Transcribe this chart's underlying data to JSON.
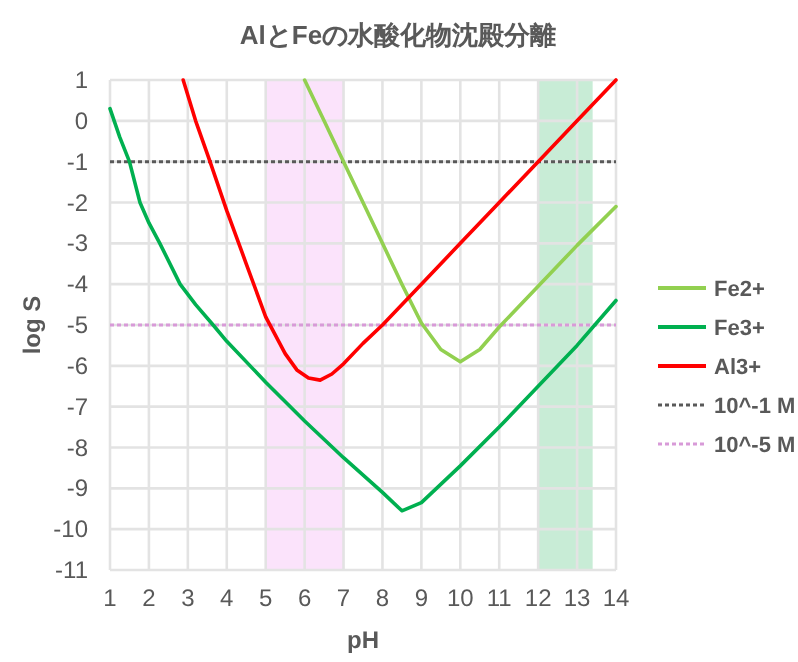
{
  "chart_data": {
    "type": "line",
    "title": "AlとFeの水酸化物沈殿分離",
    "xlabel": "pH",
    "ylabel": "log S",
    "xlim": [
      1,
      14
    ],
    "xticks": [
      1,
      2,
      3,
      4,
      5,
      6,
      7,
      8,
      9,
      10,
      11,
      12,
      13,
      14
    ],
    "ylim": [
      -11,
      1
    ],
    "yticks": [
      -11,
      -10,
      -9,
      -8,
      -7,
      -6,
      -5,
      -4,
      -3,
      -2,
      -1,
      0,
      1
    ],
    "grid": true,
    "legend": "right",
    "marker": "none",
    "series": [
      {
        "name": "Fe2+",
        "color": "#92d050",
        "x": [
          6,
          6.5,
          7,
          7.5,
          8,
          8.5,
          9,
          9.5,
          10,
          10.5,
          11,
          12,
          13,
          14
        ],
        "values": [
          1,
          0,
          -1,
          -2,
          -3,
          -4,
          -4.95,
          -5.6,
          -5.9,
          -5.6,
          -5.05,
          -4.05,
          -3.05,
          -2.1
        ]
      },
      {
        "name": "Fe3+",
        "color": "#00b050",
        "x": [
          1,
          1.25,
          1.5,
          1.77,
          2,
          2.28,
          2.8,
          3.2,
          3.65,
          4,
          5,
          6,
          7,
          8,
          8.5,
          9,
          10,
          11,
          12,
          13,
          14
        ],
        "values": [
          0.3,
          -0.4,
          -1,
          -2,
          -2.5,
          -3,
          -4,
          -4.5,
          -5,
          -5.4,
          -6.4,
          -7.35,
          -8.25,
          -9.1,
          -9.55,
          -9.35,
          -8.45,
          -7.5,
          -6.5,
          -5.5,
          -4.4
        ]
      },
      {
        "name": "Al3+",
        "color": "#ff0000",
        "x": [
          2.88,
          3.2,
          3.57,
          4,
          4.5,
          5,
          5.5,
          5.8,
          6.1,
          6.4,
          6.7,
          7,
          7.5,
          8,
          9,
          10,
          11,
          12,
          13,
          14
        ],
        "values": [
          1,
          0,
          -1,
          -2.2,
          -3.5,
          -4.8,
          -5.7,
          -6.1,
          -6.3,
          -6.35,
          -6.2,
          -5.95,
          -5.45,
          -5,
          -4,
          -3,
          -2,
          -1,
          0,
          1
        ]
      }
    ],
    "ref_lines": [
      {
        "axis": "y",
        "value": -1,
        "label": "10^-1 M",
        "color": "#595959",
        "line_style": "dotted"
      },
      {
        "axis": "y",
        "value": -5,
        "label": "10^-5 M",
        "color": "#d89ad8",
        "line_style": "dotted"
      }
    ],
    "bands": [
      {
        "axis": "x",
        "from": 5,
        "to": 7,
        "color": "#fbe3fb"
      },
      {
        "axis": "x",
        "from": 12,
        "to": 13.4,
        "color": "#c8ecd6"
      }
    ]
  }
}
